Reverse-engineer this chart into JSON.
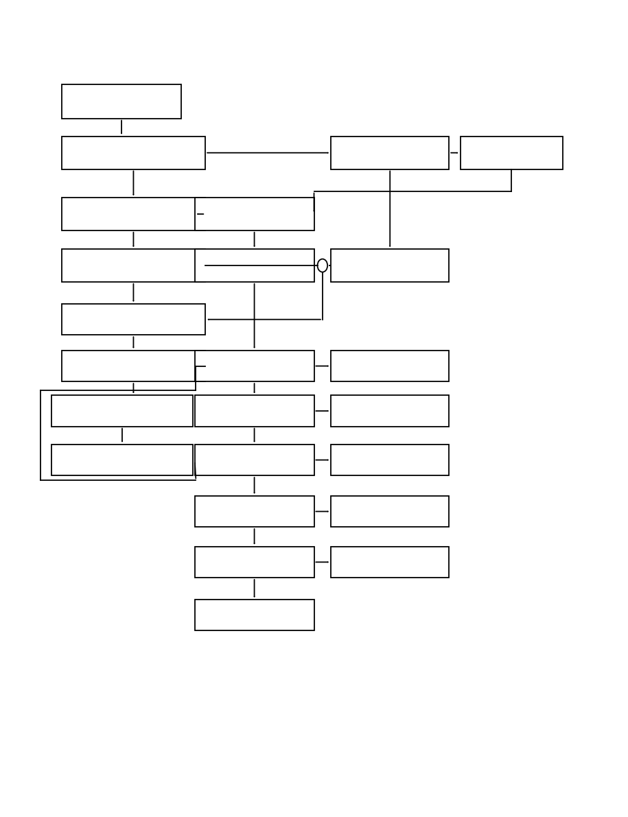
{
  "background_color": "#ffffff",
  "boxes": {
    "B1": [
      0.098,
      0.855,
      0.191,
      0.042
    ],
    "B2": [
      0.098,
      0.793,
      0.229,
      0.04
    ],
    "B3": [
      0.098,
      0.718,
      0.229,
      0.04
    ],
    "B4": [
      0.098,
      0.655,
      0.229,
      0.04
    ],
    "B5": [
      0.098,
      0.59,
      0.229,
      0.038
    ],
    "B6": [
      0.098,
      0.533,
      0.229,
      0.038
    ],
    "B7": [
      0.082,
      0.478,
      0.225,
      0.038
    ],
    "B8": [
      0.082,
      0.418,
      0.225,
      0.038
    ],
    "C1": [
      0.31,
      0.718,
      0.19,
      0.04
    ],
    "C2": [
      0.31,
      0.655,
      0.19,
      0.04
    ],
    "C3": [
      0.31,
      0.533,
      0.19,
      0.038
    ],
    "C4": [
      0.31,
      0.478,
      0.19,
      0.038
    ],
    "C5": [
      0.31,
      0.418,
      0.19,
      0.038
    ],
    "C6": [
      0.31,
      0.355,
      0.19,
      0.038
    ],
    "C7": [
      0.31,
      0.293,
      0.19,
      0.038
    ],
    "C8": [
      0.31,
      0.228,
      0.19,
      0.038
    ],
    "D1": [
      0.527,
      0.793,
      0.188,
      0.04
    ],
    "D2": [
      0.527,
      0.655,
      0.188,
      0.04
    ],
    "D3": [
      0.733,
      0.793,
      0.163,
      0.04
    ],
    "R1": [
      0.527,
      0.533,
      0.188,
      0.038
    ],
    "R2": [
      0.527,
      0.478,
      0.188,
      0.038
    ],
    "R3": [
      0.527,
      0.418,
      0.188,
      0.038
    ],
    "R4": [
      0.527,
      0.355,
      0.188,
      0.038
    ],
    "R5": [
      0.527,
      0.293,
      0.188,
      0.038
    ]
  }
}
